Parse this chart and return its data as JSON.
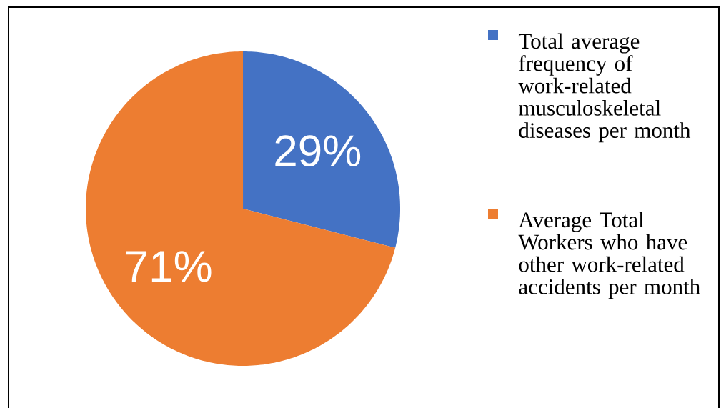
{
  "chart_data": {
    "type": "pie",
    "categories": [
      "Total average frequency of work-related musculoskeletal diseases per month",
      "Average Total Workers who have other work-related accidents per month"
    ],
    "values": [
      29,
      71
    ],
    "colors": [
      "#4472c4",
      "#ed7d31"
    ],
    "value_labels": [
      "29%",
      "71%"
    ],
    "legend": "right"
  }
}
